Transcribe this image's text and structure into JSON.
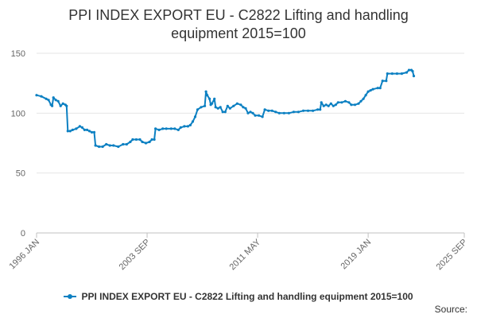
{
  "chart_data": {
    "type": "line",
    "title_line1": "PPI INDEX EXPORT EU - C2822 Lifting and handling",
    "title_line2": "equipment 2015=100",
    "xlabel": "",
    "ylabel": "",
    "ylim": [
      0,
      150
    ],
    "yticks": [
      0,
      50,
      100,
      150
    ],
    "x_tick_labels": [
      "1996 JAN",
      "2003 SEP",
      "2011 MAY",
      "2019 JAN",
      "2025 SEP"
    ],
    "x_tick_positions": [
      0,
      92,
      184,
      276,
      356
    ],
    "x_range": [
      0,
      356
    ],
    "grid": true,
    "legend": "bottom",
    "color": "#0c80c2",
    "series": [
      {
        "name": "PPI INDEX EXPORT EU - C2822 Lifting and handling equipment 2015=100",
        "points": [
          [
            0,
            115
          ],
          [
            4,
            114
          ],
          [
            8,
            112
          ],
          [
            10,
            111
          ],
          [
            12,
            107
          ],
          [
            13,
            106
          ],
          [
            14,
            113
          ],
          [
            16,
            111
          ],
          [
            18,
            110
          ],
          [
            20,
            106
          ],
          [
            22,
            108
          ],
          [
            24,
            107
          ],
          [
            25,
            106
          ],
          [
            26,
            85
          ],
          [
            28,
            85
          ],
          [
            30,
            86
          ],
          [
            33,
            87
          ],
          [
            36,
            89
          ],
          [
            38,
            88
          ],
          [
            40,
            86
          ],
          [
            42,
            86
          ],
          [
            44,
            85
          ],
          [
            46,
            84
          ],
          [
            48,
            84
          ],
          [
            49,
            73
          ],
          [
            52,
            72
          ],
          [
            55,
            72
          ],
          [
            58,
            74
          ],
          [
            61,
            73
          ],
          [
            64,
            73
          ],
          [
            68,
            72
          ],
          [
            72,
            74
          ],
          [
            75,
            74
          ],
          [
            78,
            76
          ],
          [
            80,
            78
          ],
          [
            83,
            78
          ],
          [
            86,
            78
          ],
          [
            88,
            76
          ],
          [
            91,
            75
          ],
          [
            94,
            76
          ],
          [
            96,
            78
          ],
          [
            98,
            78
          ],
          [
            99,
            87
          ],
          [
            102,
            86
          ],
          [
            105,
            87
          ],
          [
            108,
            87
          ],
          [
            112,
            87
          ],
          [
            115,
            87
          ],
          [
            118,
            86
          ],
          [
            120,
            88
          ],
          [
            123,
            89
          ],
          [
            126,
            89
          ],
          [
            128,
            90
          ],
          [
            130,
            93
          ],
          [
            132,
            97
          ],
          [
            134,
            103
          ],
          [
            137,
            105
          ],
          [
            140,
            106
          ],
          [
            141,
            118
          ],
          [
            142,
            115
          ],
          [
            144,
            112
          ],
          [
            145,
            107
          ],
          [
            146,
            108
          ],
          [
            148,
            112
          ],
          [
            149,
            105
          ],
          [
            151,
            104
          ],
          [
            153,
            105
          ],
          [
            155,
            101
          ],
          [
            157,
            101
          ],
          [
            159,
            106
          ],
          [
            161,
            104
          ],
          [
            164,
            106
          ],
          [
            167,
            108
          ],
          [
            170,
            107
          ],
          [
            172,
            105
          ],
          [
            174,
            104
          ],
          [
            176,
            100
          ],
          [
            178,
            101
          ],
          [
            180,
            100
          ],
          [
            182,
            98
          ],
          [
            185,
            98
          ],
          [
            188,
            97
          ],
          [
            190,
            103
          ],
          [
            193,
            102
          ],
          [
            196,
            102
          ],
          [
            199,
            101
          ],
          [
            202,
            100
          ],
          [
            206,
            100
          ],
          [
            210,
            100
          ],
          [
            214,
            101
          ],
          [
            218,
            101
          ],
          [
            222,
            102
          ],
          [
            226,
            102
          ],
          [
            230,
            102
          ],
          [
            234,
            103
          ],
          [
            236,
            103
          ],
          [
            237,
            109
          ],
          [
            239,
            106
          ],
          [
            241,
            107
          ],
          [
            243,
            106
          ],
          [
            245,
            108
          ],
          [
            247,
            106
          ],
          [
            249,
            107
          ],
          [
            251,
            109
          ],
          [
            254,
            109
          ],
          [
            257,
            110
          ],
          [
            260,
            109
          ],
          [
            262,
            107
          ],
          [
            265,
            107
          ],
          [
            268,
            108
          ],
          [
            270,
            110
          ],
          [
            272,
            112
          ],
          [
            274,
            115
          ],
          [
            276,
            118
          ],
          [
            278,
            119
          ],
          [
            280,
            120
          ],
          [
            284,
            121
          ],
          [
            286,
            121
          ],
          [
            288,
            127
          ],
          [
            291,
            127
          ],
          [
            292,
            133
          ],
          [
            296,
            133
          ],
          [
            300,
            133
          ],
          [
            304,
            133
          ],
          [
            308,
            134
          ],
          [
            310,
            136
          ],
          [
            312,
            136
          ],
          [
            313,
            135
          ],
          [
            314,
            131
          ]
        ]
      }
    ],
    "source_label": "Source:"
  }
}
